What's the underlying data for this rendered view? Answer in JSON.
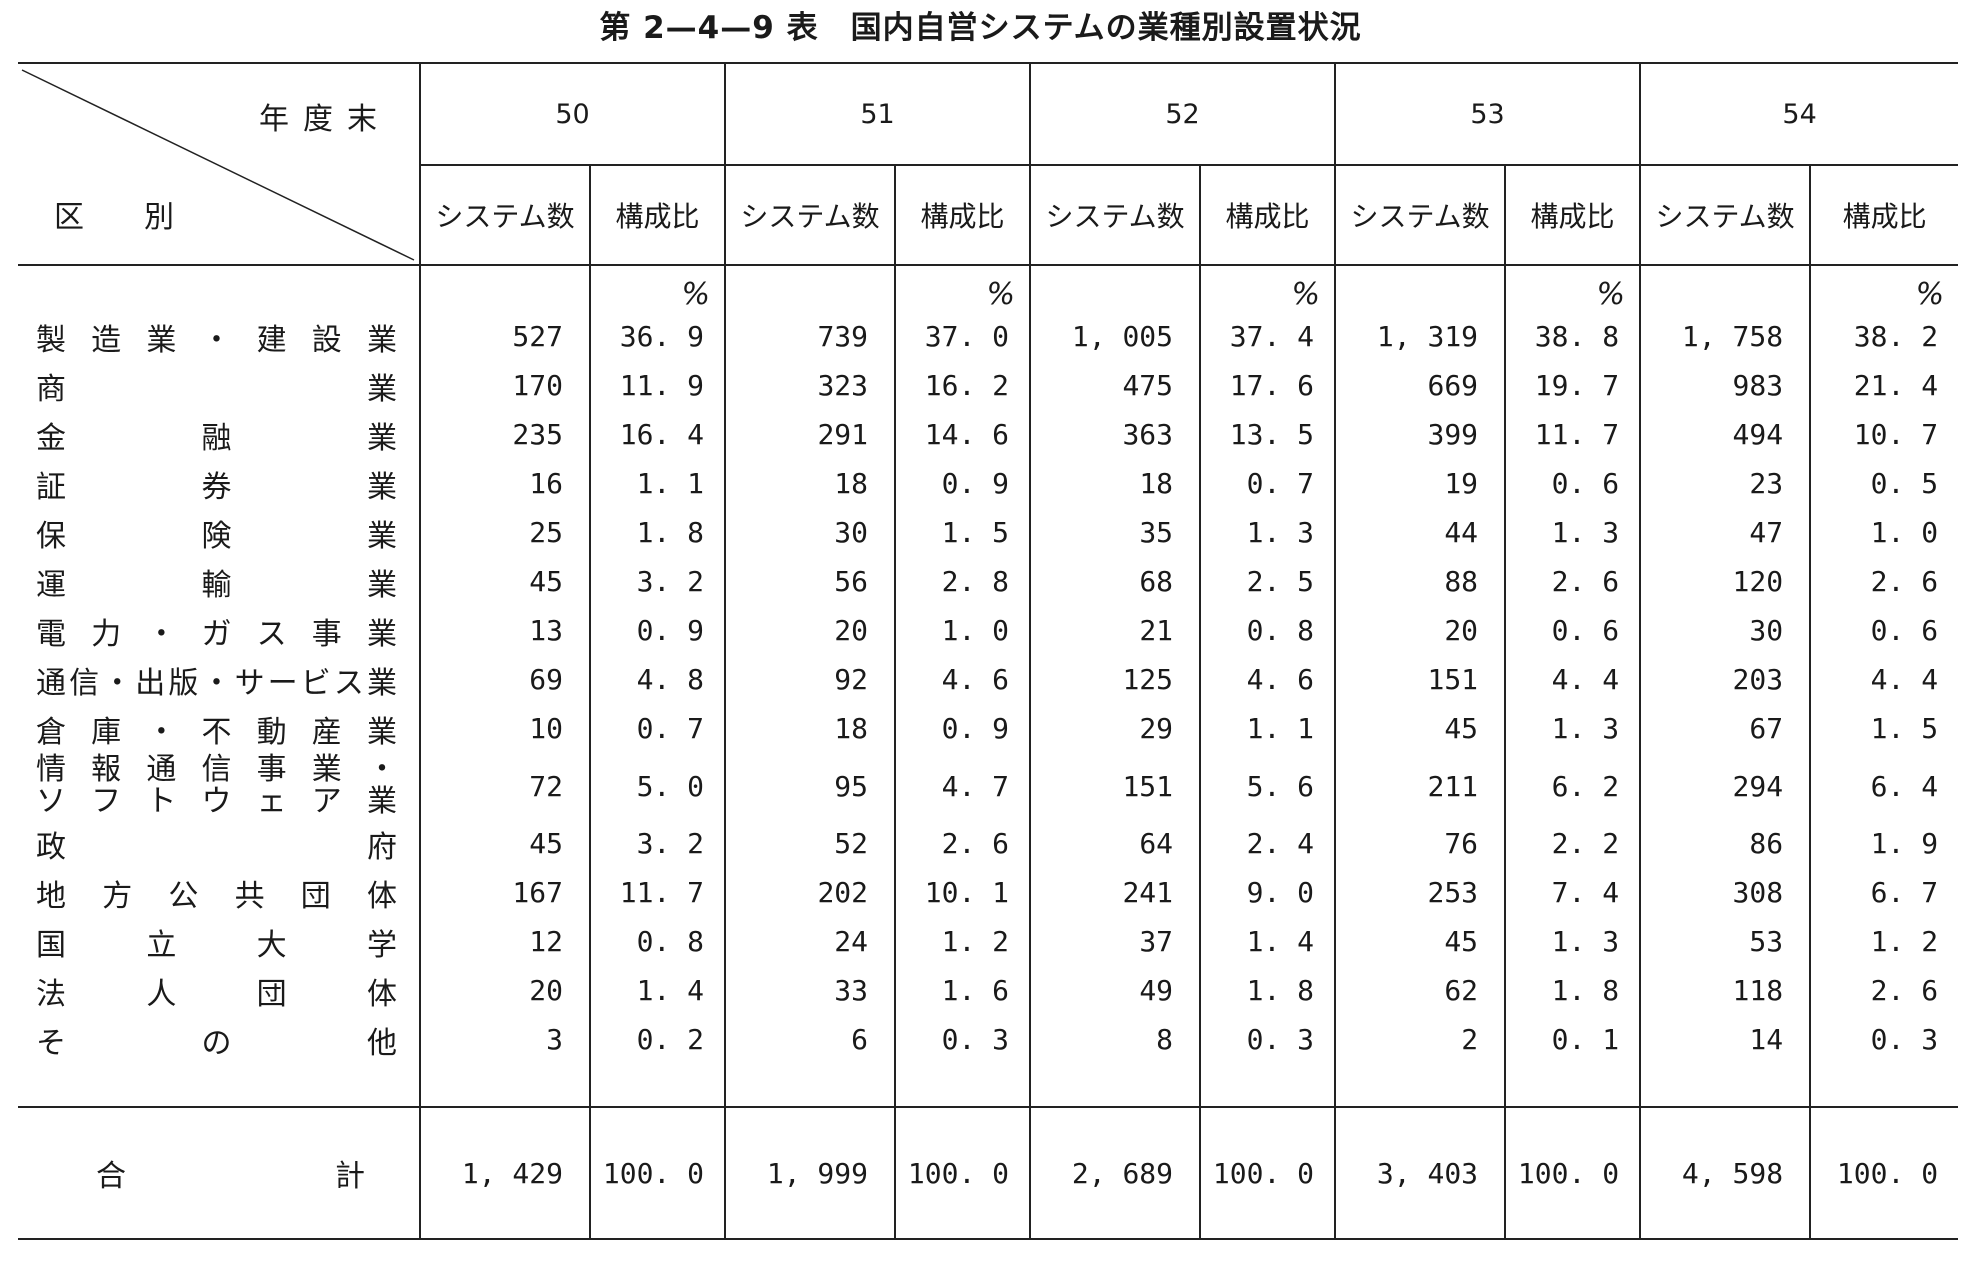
{
  "title": "第 2—4—9 表　国内自営システムの業種別設置状況",
  "header": {
    "corner_top": "年度末",
    "corner_bottom": "区　　別",
    "years": [
      "50",
      "51",
      "52",
      "53",
      "54"
    ],
    "sub_count": "システム数",
    "sub_ratio": "構成比",
    "percent_sign": "%"
  },
  "rows": [
    {
      "label": "製造業・建設業",
      "cells": [
        "527",
        "36. 9",
        "739",
        "37. 0",
        "1, 005",
        "37. 4",
        "1, 319",
        "38. 8",
        "1, 758",
        "38. 2"
      ]
    },
    {
      "label": "商業",
      "cells": [
        "170",
        "11. 9",
        "323",
        "16. 2",
        "475",
        "17. 6",
        "669",
        "19. 7",
        "983",
        "21. 4"
      ]
    },
    {
      "label": "金融業",
      "cells": [
        "235",
        "16. 4",
        "291",
        "14. 6",
        "363",
        "13. 5",
        "399",
        "11. 7",
        "494",
        "10. 7"
      ]
    },
    {
      "label": "証券業",
      "cells": [
        "16",
        "1. 1",
        "18",
        "0. 9",
        "18",
        "0. 7",
        "19",
        "0. 6",
        "23",
        "0. 5"
      ]
    },
    {
      "label": "保険業",
      "cells": [
        "25",
        "1. 8",
        "30",
        "1. 5",
        "35",
        "1. 3",
        "44",
        "1. 3",
        "47",
        "1. 0"
      ]
    },
    {
      "label": "運輸業",
      "cells": [
        "45",
        "3. 2",
        "56",
        "2. 8",
        "68",
        "2. 5",
        "88",
        "2. 6",
        "120",
        "2. 6"
      ]
    },
    {
      "label": "電力・ガス事業",
      "cells": [
        "13",
        "0. 9",
        "20",
        "1. 0",
        "21",
        "0. 8",
        "20",
        "0. 6",
        "30",
        "0. 6"
      ]
    },
    {
      "label": "通信・出版・サービス業",
      "cells": [
        "69",
        "4. 8",
        "92",
        "4. 6",
        "125",
        "4. 6",
        "151",
        "4. 4",
        "203",
        "4. 4"
      ]
    },
    {
      "label": "倉庫・不動産業",
      "cells": [
        "10",
        "0. 7",
        "18",
        "0. 9",
        "29",
        "1. 1",
        "45",
        "1. 3",
        "67",
        "1. 5"
      ]
    },
    {
      "label": "情報通信事業・ソフトウェア業",
      "line1": "情報通信事業・",
      "line2": "ソフトウェア業",
      "cells": [
        "72",
        "5. 0",
        "95",
        "4. 7",
        "151",
        "5. 6",
        "211",
        "6. 2",
        "294",
        "6. 4"
      ]
    },
    {
      "label": "政府",
      "cells": [
        "45",
        "3. 2",
        "52",
        "2. 6",
        "64",
        "2. 4",
        "76",
        "2. 2",
        "86",
        "1. 9"
      ]
    },
    {
      "label": "地方公共団体",
      "cells": [
        "167",
        "11. 7",
        "202",
        "10. 1",
        "241",
        "9. 0",
        "253",
        "7. 4",
        "308",
        "6. 7"
      ]
    },
    {
      "label": "国立大学",
      "cells": [
        "12",
        "0. 8",
        "24",
        "1. 2",
        "37",
        "1. 4",
        "45",
        "1. 3",
        "53",
        "1. 2"
      ]
    },
    {
      "label": "法人団体",
      "cells": [
        "20",
        "1. 4",
        "33",
        "1. 6",
        "49",
        "1. 8",
        "62",
        "1. 8",
        "118",
        "2. 6"
      ]
    },
    {
      "label": "その他",
      "cells": [
        "3",
        "0. 2",
        "6",
        "0. 3",
        "8",
        "0. 3",
        "2",
        "0. 1",
        "14",
        "0. 3"
      ]
    }
  ],
  "total": {
    "label": "合計",
    "cells": [
      "1, 429",
      "100. 0",
      "1, 999",
      "100. 0",
      "2, 689",
      "100. 0",
      "3, 403",
      "100. 0",
      "4, 598",
      "100. 0"
    ]
  }
}
